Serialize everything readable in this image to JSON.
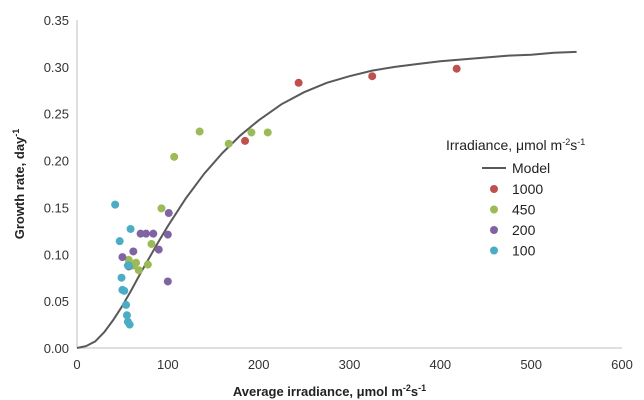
{
  "chart_data": {
    "type": "scatter",
    "title": "",
    "xlabel": {
      "main": "Average irradiance, μmol m",
      "sup1": "-2",
      "mid": "s",
      "sup2": "-1"
    },
    "ylabel": {
      "main": "Growth rate, day",
      "sup": "-1"
    },
    "xlim": [
      0,
      600
    ],
    "ylim": [
      0,
      0.35
    ],
    "x_ticks": [
      "0",
      "100",
      "200",
      "300",
      "400",
      "500",
      "600"
    ],
    "y_ticks": [
      "0.00",
      "0.05",
      "0.10",
      "0.15",
      "0.20",
      "0.25",
      "0.30",
      "0.35"
    ],
    "grid": false,
    "legend": {
      "placement": "right",
      "title": {
        "main": "Irradiance, μmol m",
        "sup1": "-2",
        "mid": "s",
        "sup2": "-1"
      },
      "model_label": "Model"
    },
    "model": {
      "name": "Model",
      "color": "#595959",
      "x": [
        0,
        10,
        20,
        30,
        40,
        50,
        60,
        70,
        80,
        90,
        100,
        120,
        140,
        160,
        180,
        200,
        225,
        250,
        275,
        300,
        325,
        350,
        375,
        400,
        425,
        450,
        475,
        500,
        525,
        550
      ],
      "y": [
        0.0,
        0.002,
        0.007,
        0.017,
        0.03,
        0.045,
        0.062,
        0.08,
        0.097,
        0.114,
        0.13,
        0.16,
        0.186,
        0.208,
        0.227,
        0.243,
        0.26,
        0.273,
        0.283,
        0.29,
        0.296,
        0.3,
        0.303,
        0.306,
        0.308,
        0.31,
        0.312,
        0.313,
        0.315,
        0.316
      ]
    },
    "series": [
      {
        "name": "1000",
        "color": "#c0504d",
        "x": [
          185,
          244,
          325,
          418
        ],
        "y": [
          0.221,
          0.283,
          0.29,
          0.298
        ]
      },
      {
        "name": "450",
        "color": "#9bbb59",
        "x": [
          57,
          62,
          65,
          68,
          78,
          82,
          93,
          107,
          135,
          167,
          192,
          210
        ],
        "y": [
          0.094,
          0.088,
          0.091,
          0.083,
          0.089,
          0.111,
          0.149,
          0.204,
          0.231,
          0.218,
          0.23,
          0.23
        ]
      },
      {
        "name": "200",
        "color": "#8064a2",
        "x": [
          50,
          57,
          62,
          70,
          76,
          84,
          90,
          100,
          100,
          101
        ],
        "y": [
          0.097,
          0.087,
          0.103,
          0.122,
          0.122,
          0.122,
          0.105,
          0.121,
          0.071,
          0.144
        ]
      },
      {
        "name": "100",
        "color": "#4bacc6",
        "x": [
          42,
          47,
          49,
          50,
          52,
          54,
          55,
          56,
          56,
          57,
          58,
          59
        ],
        "y": [
          0.153,
          0.114,
          0.075,
          0.062,
          0.061,
          0.046,
          0.035,
          0.088,
          0.028,
          0.088,
          0.025,
          0.127
        ]
      }
    ]
  }
}
